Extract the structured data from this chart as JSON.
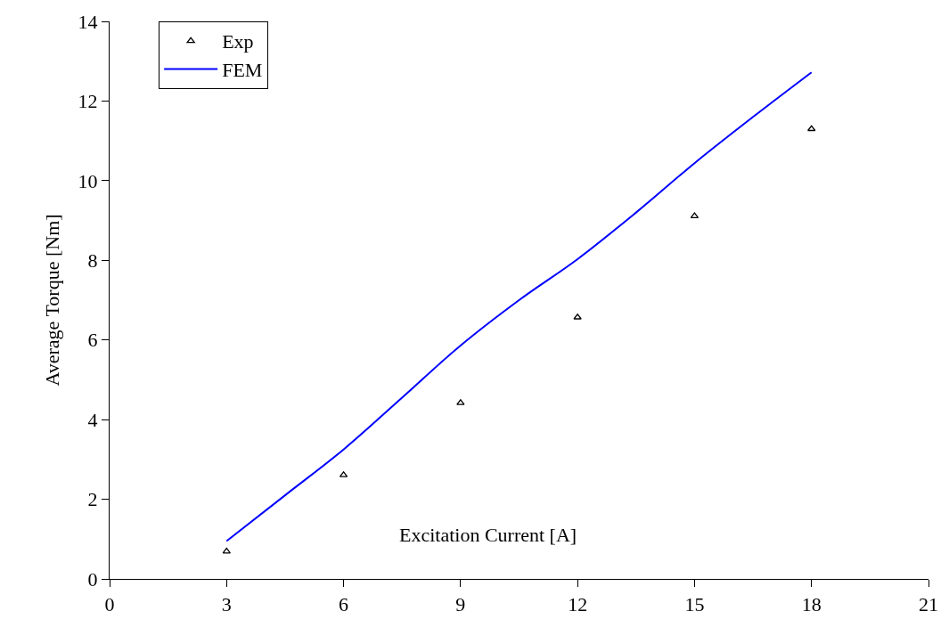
{
  "chart_data": {
    "type": "scatter",
    "xlabel": "Excitation Current [A]",
    "ylabel": "Average Torque [Nm]",
    "xlim": [
      0,
      21
    ],
    "xticks": [
      0,
      3,
      6,
      9,
      12,
      15,
      18,
      21
    ],
    "ylim": [
      0,
      14
    ],
    "yticks": [
      0,
      2,
      4,
      6,
      8,
      10,
      12,
      14
    ],
    "grid": false,
    "legend": "top left",
    "series": [
      {
        "name": "Exp",
        "marker": "triangle",
        "color": "#000000",
        "x": [
          3,
          6,
          9,
          12,
          15,
          18
        ],
        "values": [
          0.69,
          2.61,
          4.42,
          6.57,
          9.11,
          11.3
        ]
      },
      {
        "name": "FEM",
        "type": "line",
        "marker": "none",
        "line_style": "solid",
        "color": "#0000ff",
        "x": [
          3,
          4.5,
          6,
          7.5,
          9,
          10.5,
          12,
          13.5,
          15,
          16.5,
          18
        ],
        "values": [
          0.95,
          2.1,
          3.25,
          4.55,
          5.86,
          7.0,
          8.03,
          9.2,
          10.44,
          11.6,
          12.72
        ]
      }
    ]
  }
}
